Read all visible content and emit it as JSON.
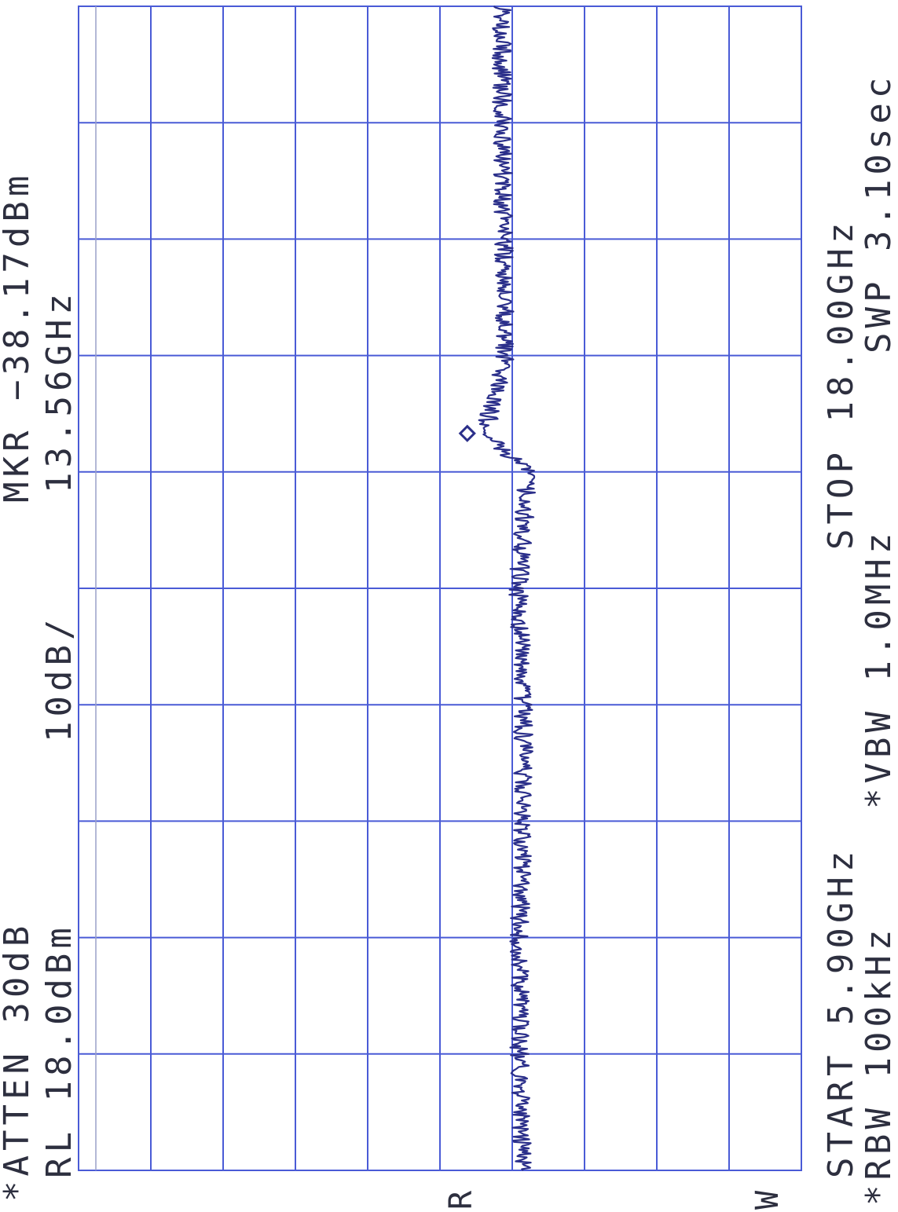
{
  "header": {
    "atten": "*ATTEN 30dB",
    "ref_level": "RL 18.0dBm",
    "scale": "10dB/",
    "marker_level": "MKR −38.17dBm",
    "marker_freq": "13.56GHz"
  },
  "footer": {
    "start": "START 5.90GHz",
    "stop": "STOP 18.00GHz",
    "rbw": "*RBW 100kHz",
    "vbw": "*VBW 1.0MHz",
    "sweep": "SWP 3.10sec"
  },
  "side_marks": {
    "r_mark": "R",
    "w_mark": "W"
  },
  "chart_data": {
    "type": "line",
    "title": "",
    "xlabel": "",
    "ylabel": "",
    "x_unit": "GHz",
    "y_unit": "dBm",
    "xlim": [
      5.9,
      18.0
    ],
    "ylim": [
      -82.0,
      18.0
    ],
    "grid": true,
    "grid_divisions": {
      "x": 10,
      "y": 10
    },
    "series": [
      {
        "values_note_unit": "dBm",
        "x": [
          5.9,
          7.11,
          8.32,
          9.53,
          10.74,
          11.95,
          13.16,
          13.56,
          14.37,
          15.58,
          16.79,
          18.0
        ],
        "values": [
          -43.5,
          -43.0,
          -43.0,
          -43.5,
          -43.5,
          -42.8,
          -44.2,
          -38.17,
          -41.0,
          -40.8,
          -40.6,
          -40.5
        ]
      }
    ],
    "marker": {
      "x": 13.56,
      "y": -38.17
    }
  },
  "colors": {
    "grid": "#4a5bd6",
    "trace": "#2b2f8a",
    "text": "#2d2f3f",
    "background": "#ffffff"
  }
}
